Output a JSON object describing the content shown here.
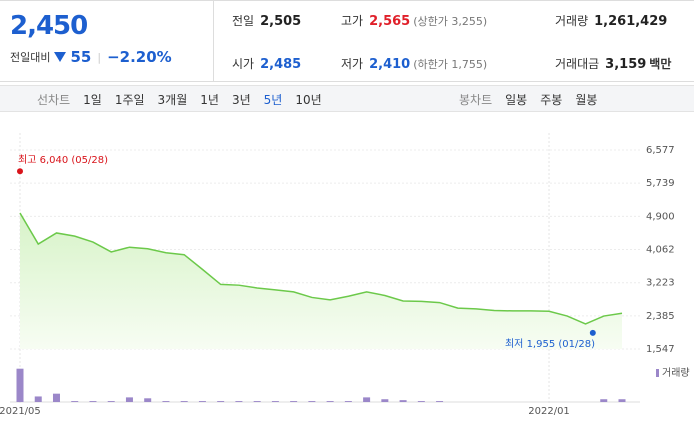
{
  "quote": {
    "price": "2,450",
    "price_color": "#1d5fcf",
    "change_label": "전일대비",
    "change": "55",
    "change_rate": "−2.20%",
    "change_color": "#1d5fcf",
    "cells": [
      {
        "label": "전일",
        "value": "2,505",
        "color": "#222222"
      },
      {
        "label": "고가",
        "value": "2,565",
        "note": "(상한가 3,255)",
        "color": "#e0202a"
      },
      {
        "label": "거래량",
        "value": "1,261,429",
        "color": "#222222"
      },
      {
        "label": "시가",
        "value": "2,485",
        "color": "#1d5fcf"
      },
      {
        "label": "저가",
        "value": "2,410",
        "note": "(하한가 1,755)",
        "color": "#1d5fcf"
      },
      {
        "label": "거래대금",
        "value": "3,159",
        "unit": "백만",
        "color": "#222222"
      }
    ]
  },
  "tabs": {
    "line_label": "선차트",
    "periods": [
      "1일",
      "1주일",
      "3개월",
      "1년",
      "3년",
      "5년",
      "10년"
    ],
    "selected_period": "5년",
    "candle_label": "봉차트",
    "candles": [
      "일봉",
      "주봉",
      "월봉"
    ]
  },
  "chart_data": [
    {
      "type": "area",
      "color": "#6cc94a",
      "categories": [
        "2021/05",
        null,
        null,
        null,
        null,
        null,
        null,
        null,
        null,
        null,
        null,
        null,
        null,
        null,
        null,
        null,
        null,
        null,
        null,
        null,
        null,
        null,
        null,
        null,
        null,
        null,
        null,
        null,
        null,
        "2022/01",
        null,
        null,
        null,
        null
      ],
      "values": [
        4985,
        4200,
        4480,
        4400,
        4250,
        4000,
        4120,
        4080,
        3980,
        3930,
        3560,
        3180,
        3160,
        3090,
        3040,
        2990,
        2850,
        2790,
        2880,
        2990,
        2900,
        2760,
        2750,
        2720,
        2580,
        2560,
        2520,
        2510,
        2510,
        2500,
        2380,
        2180,
        2380,
        2450
      ],
      "ylim": [
        1547,
        6577
      ],
      "yticks": [
        {
          "value": 6577,
          "label": "6,577"
        },
        {
          "value": 5739,
          "label": "5,739"
        },
        {
          "value": 4900,
          "label": "4,900"
        },
        {
          "value": 4062,
          "label": "4,062"
        },
        {
          "value": 3223,
          "label": "3,223"
        },
        {
          "value": 2385,
          "label": "2,385"
        },
        {
          "value": 1547,
          "label": "1,547"
        }
      ],
      "grid": true,
      "annotations": [
        {
          "label": "최고 6,040 (05/28)",
          "value": 6040,
          "color": "#d9141b"
        },
        {
          "label": "최저 1,955 (01/28)",
          "value": 1955,
          "color": "#1d5fcf"
        }
      ]
    },
    {
      "type": "bar",
      "name": "거래량",
      "color": "#9b87c9",
      "ylim": [
        0,
        40
      ],
      "values": [
        36,
        6,
        9,
        1,
        1,
        1,
        5,
        4,
        1,
        1,
        1,
        1,
        1,
        1,
        1,
        1,
        1,
        1,
        1,
        5,
        3,
        2,
        1,
        1,
        0,
        0,
        0,
        0,
        0,
        0,
        0,
        0,
        3,
        3
      ]
    }
  ]
}
